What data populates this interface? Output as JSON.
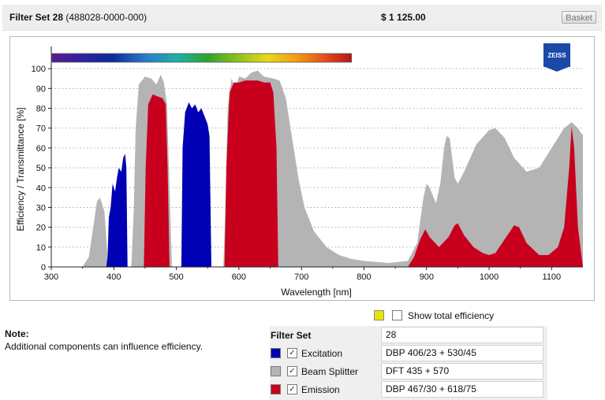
{
  "header": {
    "filter_set_name": "Filter Set 28",
    "part_number": "(488028-0000-000)",
    "price": "$ 1 125.00",
    "basket_label": "Basket"
  },
  "logo_text": "ZEISS",
  "show_total_efficiency": {
    "label": "Show total efficiency",
    "checked": false,
    "swatch_color": "#e6e600"
  },
  "note": {
    "title": "Note:",
    "text": "Additional components can influence efficiency."
  },
  "filter_panel": {
    "filter_set_label": "Filter Set",
    "filter_set_value": "28",
    "rows": [
      {
        "label": "Excitation",
        "value": "DBP 406/23 + 530/45",
        "color": "#0000b4",
        "checked": true
      },
      {
        "label": "Beam Splitter",
        "value": "DFT 435 + 570",
        "color": "#b4b4b4",
        "checked": true
      },
      {
        "label": "Emission",
        "value": "DBP 467/30 + 618/75",
        "color": "#c8001e",
        "checked": true
      }
    ]
  },
  "chart_data": {
    "type": "area",
    "xlabel": "Wavelength [nm]",
    "ylabel": "Efficiency / Transmittance [%]",
    "xlim": [
      300,
      1150
    ],
    "ylim": [
      0,
      108
    ],
    "x_ticks": [
      300,
      400,
      500,
      600,
      700,
      800,
      900,
      1000,
      1100
    ],
    "y_ticks": [
      0,
      10,
      20,
      30,
      40,
      50,
      60,
      70,
      80,
      90,
      100
    ],
    "grid": "horizontal dotted",
    "spectrum_bar": {
      "from_nm": 300,
      "to_nm": 780
    },
    "series": [
      {
        "name": "Beam Splitter",
        "color": "#b4b4b4",
        "points": [
          [
            350,
            0
          ],
          [
            360,
            5
          ],
          [
            368,
            22
          ],
          [
            373,
            33
          ],
          [
            378,
            35
          ],
          [
            385,
            28
          ],
          [
            390,
            5
          ],
          [
            393,
            0
          ],
          [
            428,
            0
          ],
          [
            432,
            30
          ],
          [
            435,
            70
          ],
          [
            440,
            92
          ],
          [
            450,
            96
          ],
          [
            460,
            95
          ],
          [
            468,
            92
          ],
          [
            475,
            97
          ],
          [
            480,
            93
          ],
          [
            485,
            82
          ],
          [
            490,
            30
          ],
          [
            493,
            0
          ],
          [
            575,
            0
          ],
          [
            578,
            25
          ],
          [
            582,
            80
          ],
          [
            588,
            95
          ],
          [
            595,
            90
          ],
          [
            600,
            96
          ],
          [
            610,
            95
          ],
          [
            620,
            98
          ],
          [
            630,
            99
          ],
          [
            640,
            96
          ],
          [
            655,
            95
          ],
          [
            665,
            94
          ],
          [
            675,
            85
          ],
          [
            685,
            65
          ],
          [
            695,
            45
          ],
          [
            705,
            30
          ],
          [
            720,
            18
          ],
          [
            740,
            10
          ],
          [
            760,
            6
          ],
          [
            780,
            4
          ],
          [
            800,
            3
          ],
          [
            840,
            2
          ],
          [
            870,
            3
          ],
          [
            885,
            12
          ],
          [
            895,
            35
          ],
          [
            900,
            42
          ],
          [
            905,
            40
          ],
          [
            915,
            32
          ],
          [
            922,
            42
          ],
          [
            928,
            60
          ],
          [
            932,
            66
          ],
          [
            937,
            65
          ],
          [
            945,
            45
          ],
          [
            950,
            42
          ],
          [
            960,
            48
          ],
          [
            980,
            62
          ],
          [
            1000,
            69
          ],
          [
            1010,
            70
          ],
          [
            1025,
            65
          ],
          [
            1040,
            55
          ],
          [
            1060,
            48
          ],
          [
            1080,
            50
          ],
          [
            1100,
            60
          ],
          [
            1120,
            70
          ],
          [
            1132,
            73
          ],
          [
            1142,
            70
          ],
          [
            1148,
            67
          ],
          [
            1150,
            67
          ],
          [
            1150,
            0
          ]
        ]
      },
      {
        "name": "Excitation",
        "color": "#0000b4",
        "points": [
          [
            388,
            0
          ],
          [
            390,
            5
          ],
          [
            392,
            25
          ],
          [
            395,
            30
          ],
          [
            398,
            42
          ],
          [
            402,
            38
          ],
          [
            405,
            45
          ],
          [
            408,
            50
          ],
          [
            412,
            48
          ],
          [
            415,
            55
          ],
          [
            418,
            57
          ],
          [
            420,
            50
          ],
          [
            422,
            0
          ],
          [
            508,
            0
          ],
          [
            510,
            60
          ],
          [
            514,
            78
          ],
          [
            520,
            83
          ],
          [
            525,
            80
          ],
          [
            530,
            82
          ],
          [
            535,
            78
          ],
          [
            540,
            80
          ],
          [
            545,
            76
          ],
          [
            550,
            72
          ],
          [
            553,
            66
          ],
          [
            556,
            0
          ]
        ]
      },
      {
        "name": "Emission",
        "color": "#c8001e",
        "points": [
          [
            448,
            0
          ],
          [
            451,
            50
          ],
          [
            455,
            82
          ],
          [
            462,
            87
          ],
          [
            470,
            86
          ],
          [
            478,
            85
          ],
          [
            483,
            82
          ],
          [
            486,
            50
          ],
          [
            489,
            0
          ],
          [
            577,
            0
          ],
          [
            580,
            50
          ],
          [
            585,
            88
          ],
          [
            592,
            93
          ],
          [
            600,
            93
          ],
          [
            610,
            94
          ],
          [
            620,
            94
          ],
          [
            630,
            94
          ],
          [
            640,
            93
          ],
          [
            650,
            93
          ],
          [
            655,
            88
          ],
          [
            660,
            60
          ],
          [
            663,
            0
          ],
          [
            870,
            0
          ],
          [
            880,
            5
          ],
          [
            890,
            14
          ],
          [
            898,
            19
          ],
          [
            905,
            15
          ],
          [
            920,
            10
          ],
          [
            935,
            15
          ],
          [
            945,
            21
          ],
          [
            950,
            22
          ],
          [
            960,
            16
          ],
          [
            975,
            10
          ],
          [
            990,
            7
          ],
          [
            1000,
            6
          ],
          [
            1010,
            7
          ],
          [
            1025,
            14
          ],
          [
            1040,
            21
          ],
          [
            1048,
            20
          ],
          [
            1060,
            12
          ],
          [
            1080,
            6
          ],
          [
            1095,
            6
          ],
          [
            1110,
            10
          ],
          [
            1120,
            20
          ],
          [
            1128,
            50
          ],
          [
            1132,
            71
          ],
          [
            1136,
            60
          ],
          [
            1142,
            20
          ],
          [
            1148,
            5
          ],
          [
            1150,
            0
          ]
        ]
      }
    ]
  }
}
